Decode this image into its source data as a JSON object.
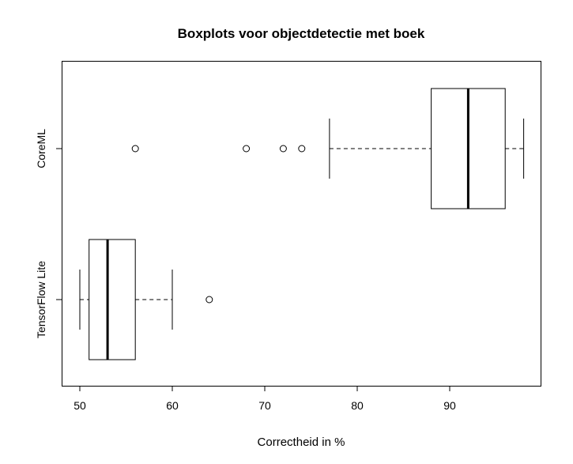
{
  "chart_data": {
    "type": "boxplot",
    "orientation": "horizontal",
    "title": "Boxplots voor objectdetectie met boek",
    "xlabel": "Correctheid in %",
    "ylabel": "",
    "xlim": [
      48,
      99.5
    ],
    "xticks": [
      50,
      60,
      70,
      80,
      90
    ],
    "grid": false,
    "series": [
      {
        "name": "CoreML",
        "whisker_low": 77,
        "q1": 88,
        "median": 92,
        "q3": 96,
        "whisker_high": 98,
        "outliers": [
          56,
          68,
          72,
          74
        ]
      },
      {
        "name": "TensorFlow Lite",
        "whisker_low": 50,
        "q1": 51,
        "median": 53,
        "q3": 56,
        "whisker_high": 60,
        "outliers": [
          64
        ]
      }
    ]
  }
}
